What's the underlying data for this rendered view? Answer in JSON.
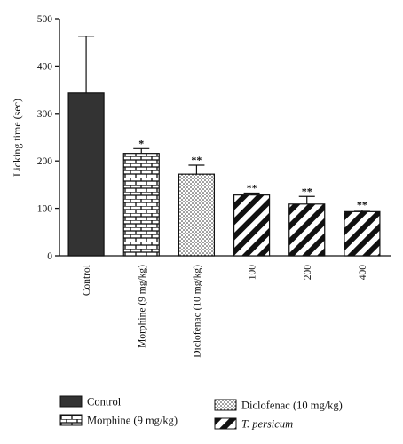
{
  "chart_data": {
    "type": "bar",
    "ylabel": "Licking time (sec)",
    "xlabel": "",
    "ylim": [
      0,
      500
    ],
    "yticks": [
      "0",
      "100",
      "200",
      "300",
      "400",
      "500"
    ],
    "categories": [
      "Control",
      "Morphine (9 mg/kg)",
      "Diclofenac (10 mg/kg)",
      "100",
      "200",
      "400"
    ],
    "values": [
      343,
      216,
      172,
      128,
      109,
      93
    ],
    "errors": [
      120,
      10,
      19,
      4,
      16,
      3
    ],
    "significance": [
      "",
      "*",
      "**",
      "**",
      "**",
      "**"
    ],
    "patterns": [
      "solid",
      "brick",
      "dots",
      "stripes",
      "stripes",
      "stripes"
    ],
    "colors": {
      "bar_fill": "#333333",
      "pattern_ink": "#111111",
      "axis": "#111111"
    },
    "legend": [
      {
        "label": "Control",
        "pattern": "solid",
        "italic": false
      },
      {
        "label": "Morphine (9 mg/kg)",
        "pattern": "brick",
        "italic": false
      },
      {
        "label": "Diclofenac (10 mg/kg)",
        "pattern": "dots",
        "italic": false
      },
      {
        "label": "T. persicum",
        "pattern": "stripes",
        "italic": true
      }
    ],
    "legend_position": "bottom"
  }
}
